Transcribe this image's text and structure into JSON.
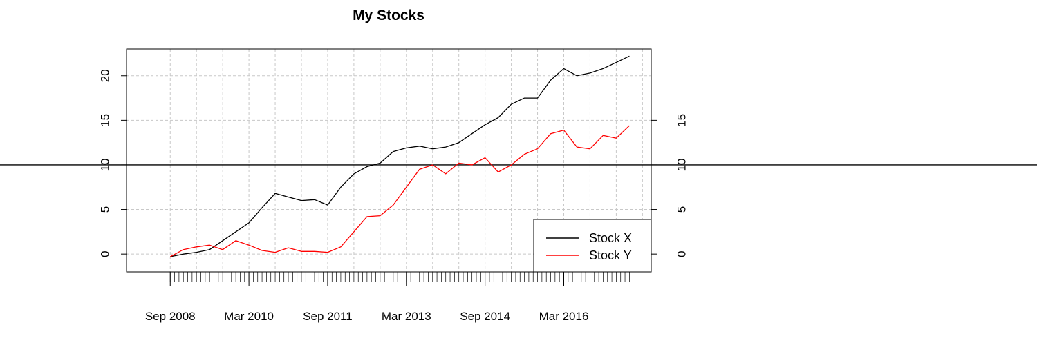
{
  "chart_data": {
    "type": "line",
    "title": "My Stocks",
    "xlabel": "",
    "ylabel": "",
    "x_tick_labels": [
      "Sep 2008",
      "Mar 2010",
      "Sep 2011",
      "Mar 2013",
      "Sep 2014",
      "Mar 2016"
    ],
    "x_tick_dates": [
      "2008-09",
      "2010-03",
      "2011-09",
      "2013-03",
      "2014-09",
      "2016-03"
    ],
    "y_ticks_left": [
      0,
      5,
      10,
      15,
      20
    ],
    "y_ticks_right": [
      0,
      5,
      10,
      15
    ],
    "ylim": [
      -2,
      23
    ],
    "xlim": [
      "2007-11",
      "2017-11"
    ],
    "grid": true,
    "hline": 10,
    "legend_position": "bottom-right",
    "series": [
      {
        "name": "Stock X",
        "color": "#000000",
        "x": [
          "2008-09",
          "2008-12",
          "2009-03",
          "2009-06",
          "2009-09",
          "2009-12",
          "2010-03",
          "2010-06",
          "2010-09",
          "2010-12",
          "2011-03",
          "2011-06",
          "2011-09",
          "2011-12",
          "2012-03",
          "2012-06",
          "2012-09",
          "2012-12",
          "2013-03",
          "2013-06",
          "2013-09",
          "2013-12",
          "2014-03",
          "2014-06",
          "2014-09",
          "2014-12",
          "2015-03",
          "2015-06",
          "2015-09",
          "2015-12",
          "2016-03",
          "2016-06",
          "2016-09",
          "2016-12",
          "2017-03",
          "2017-06"
        ],
        "values": [
          -0.3,
          0.0,
          0.2,
          0.5,
          1.5,
          2.5,
          3.5,
          5.2,
          6.8,
          6.4,
          6.0,
          6.1,
          5.5,
          7.5,
          9.0,
          9.8,
          10.2,
          11.5,
          11.9,
          12.1,
          11.8,
          12.0,
          12.5,
          13.5,
          14.5,
          15.3,
          16.8,
          17.5,
          17.5,
          19.5,
          20.8,
          20.0,
          20.3,
          20.8,
          21.5,
          22.2
        ]
      },
      {
        "name": "Stock Y",
        "color": "#ff0000",
        "x": [
          "2008-09",
          "2008-12",
          "2009-03",
          "2009-06",
          "2009-09",
          "2009-12",
          "2010-03",
          "2010-06",
          "2010-09",
          "2010-12",
          "2011-03",
          "2011-06",
          "2011-09",
          "2011-12",
          "2012-03",
          "2012-06",
          "2012-09",
          "2012-12",
          "2013-03",
          "2013-06",
          "2013-09",
          "2013-12",
          "2014-03",
          "2014-06",
          "2014-09",
          "2014-12",
          "2015-03",
          "2015-06",
          "2015-09",
          "2015-12",
          "2016-03",
          "2016-06",
          "2016-09",
          "2016-12",
          "2017-03",
          "2017-06"
        ],
        "values": [
          -0.3,
          0.5,
          0.8,
          1.0,
          0.5,
          1.5,
          1.0,
          0.4,
          0.2,
          0.7,
          0.3,
          0.3,
          0.2,
          0.8,
          2.5,
          4.2,
          4.3,
          5.5,
          7.5,
          9.5,
          10.0,
          9.0,
          10.2,
          10.0,
          10.8,
          9.2,
          10.0,
          11.2,
          11.8,
          13.5,
          13.9,
          12.0,
          11.8,
          13.3,
          13.0,
          14.4
        ]
      }
    ]
  }
}
